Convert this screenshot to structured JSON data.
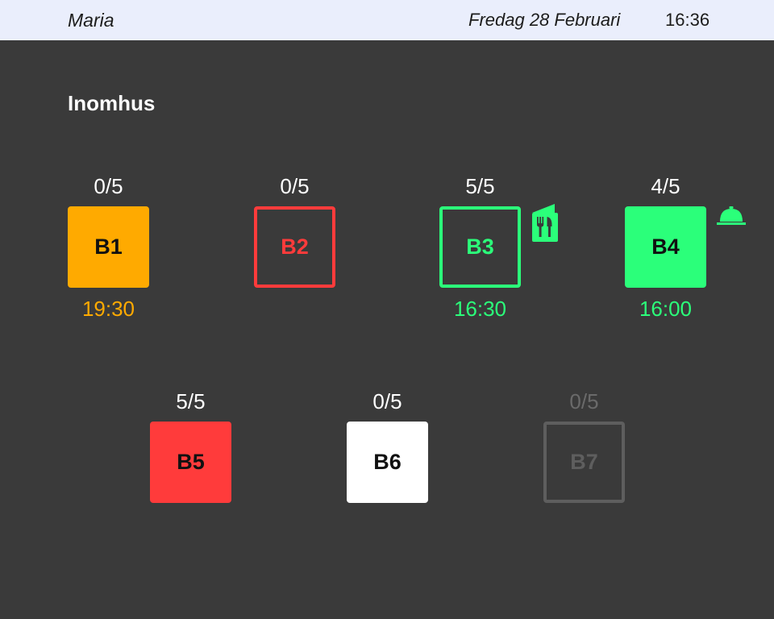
{
  "header": {
    "user": "Maria",
    "date": "Fredag 28 Februari",
    "time": "16:36"
  },
  "section": {
    "title": "Inomhus"
  },
  "tables": [
    {
      "id": "B1",
      "count": "0/5",
      "time": "19:30",
      "status": "orange"
    },
    {
      "id": "B2",
      "count": "0/5",
      "time": "",
      "status": "red-outline"
    },
    {
      "id": "B3",
      "count": "5/5",
      "time": "16:30",
      "status": "green-outline",
      "icon": "menu-cutlery-icon"
    },
    {
      "id": "B4",
      "count": "4/5",
      "time": "16:00",
      "status": "green",
      "icon": "cloche-icon"
    },
    {
      "id": "B5",
      "count": "5/5",
      "time": "",
      "status": "red"
    },
    {
      "id": "B6",
      "count": "0/5",
      "time": "",
      "status": "white"
    },
    {
      "id": "B7",
      "count": "0/5",
      "time": "",
      "status": "disabled"
    }
  ],
  "colors": {
    "orange": "#ffaa00",
    "red": "#ff3b3b",
    "green": "#2bff7a",
    "white": "#ffffff",
    "disabled": "#5e5e5e",
    "background": "#3a3a3a",
    "header_bg": "#eaeefc"
  }
}
